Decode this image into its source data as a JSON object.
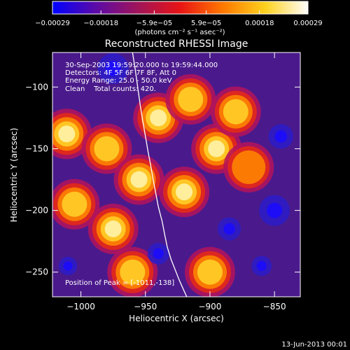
{
  "chart_data": {
    "type": "heatmap",
    "title": "Reconstructed RHESSI Image",
    "xlabel": "Heliocentric X (arcsec)",
    "ylabel": "Heliocentric Y (arcsec)",
    "xlim": [
      -1022,
      -830
    ],
    "ylim": [
      -270,
      -72
    ],
    "xticks": [
      -1000,
      -950,
      -900,
      -850
    ],
    "yticks": [
      -100,
      -150,
      -200,
      -250
    ],
    "xtick_labels": [
      "−1000",
      "−950",
      "−900",
      "−850"
    ],
    "ytick_labels": [
      "−100",
      "−150",
      "−200",
      "−250"
    ],
    "colorbar": {
      "range": [
        -0.00029,
        0.00029
      ],
      "ticks": [
        -0.00029,
        -0.00018,
        -5.9e-05,
        5.9e-05,
        0.00018,
        0.00029
      ],
      "tick_labels": [
        "−0.00029",
        "−0.00018",
        "−5.9e−05",
        "5.9e−05",
        "0.00018",
        "0.00029"
      ],
      "units_label": "(photons cm⁻² s⁻¹ asec⁻²)",
      "colors": [
        "#0000ff",
        "#5a0aa8",
        "#a0145a",
        "#e81414",
        "#ff7800",
        "#ffd21e",
        "#ffffff"
      ]
    },
    "header_lines": [
      "30-Sep-2003 19:59:20.000 to 19:59:44.000",
      "Detectors: 4F 5F 6F 7F 8F, Att 0",
      "Energy Range: 25.0 - 50.0 keV",
      "Clean    Total counts: 420."
    ],
    "peak_label": "Position of Peak = [-1011,-138]",
    "peak": [
      -1011,
      -138
    ],
    "limb_curve": {
      "x": [
        -960,
        -958,
        -956,
        -954,
        -952,
        -950,
        -948,
        -946,
        -944,
        -942,
        -940,
        -937,
        -935,
        -933,
        -930,
        -927,
        -924,
        -921,
        -918
      ],
      "y": [
        -72,
        -85,
        -100,
        -115,
        -128,
        -140,
        -152,
        -163,
        -175,
        -186,
        -197,
        -209,
        -220,
        -230,
        -240,
        -248,
        -256,
        -263,
        -270
      ]
    },
    "image_blobs": [
      {
        "x": -1011,
        "y": -138,
        "a": 1.0
      },
      {
        "x": -1005,
        "y": -195,
        "a": 0.7
      },
      {
        "x": -980,
        "y": -150,
        "a": 0.6
      },
      {
        "x": -975,
        "y": -215,
        "a": 0.75
      },
      {
        "x": -955,
        "y": -175,
        "a": 0.85
      },
      {
        "x": -940,
        "y": -125,
        "a": 0.8
      },
      {
        "x": -920,
        "y": -185,
        "a": 0.75
      },
      {
        "x": -915,
        "y": -110,
        "a": 0.7
      },
      {
        "x": -895,
        "y": -150,
        "a": 0.75
      },
      {
        "x": -900,
        "y": -250,
        "a": 0.55
      },
      {
        "x": -880,
        "y": -120,
        "a": 0.7
      },
      {
        "x": -870,
        "y": -165,
        "a": 0.45
      },
      {
        "x": -960,
        "y": -250,
        "a": 0.55
      },
      {
        "x": -1010,
        "y": -245,
        "a": -0.2
      },
      {
        "x": -975,
        "y": -85,
        "a": -0.6
      },
      {
        "x": -850,
        "y": -200,
        "a": -0.6
      },
      {
        "x": -845,
        "y": -140,
        "a": -0.4
      },
      {
        "x": -885,
        "y": -215,
        "a": -0.35
      },
      {
        "x": -940,
        "y": -235,
        "a": -0.3
      },
      {
        "x": -860,
        "y": -245,
        "a": -0.25
      }
    ]
  },
  "footer": {
    "date": "13-Jun-2013 00:01"
  }
}
